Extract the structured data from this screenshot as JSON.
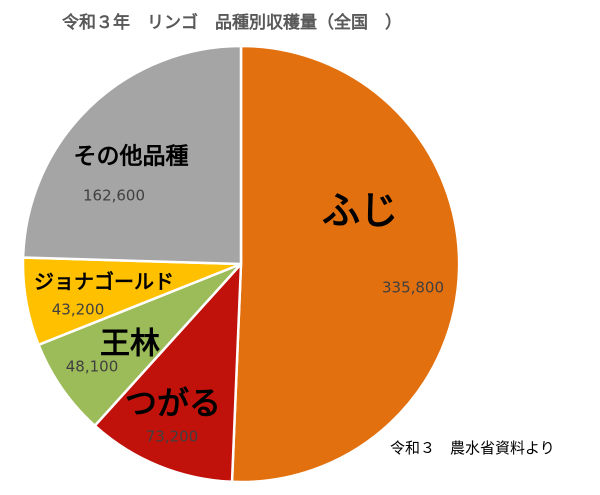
{
  "chart_data": {
    "type": "pie",
    "title": "令和３年　リンゴ　品種別収穫量（全国　）",
    "start_angle_deg": 0,
    "direction": "clockwise",
    "slices": [
      {
        "name": "ふじ",
        "value": 335800,
        "value_label": "335,800",
        "color": "#e2700f"
      },
      {
        "name": "つがる",
        "value": 73200,
        "value_label": "73,200",
        "color": "#c0120b"
      },
      {
        "name": "王林",
        "value": 48100,
        "value_label": "48,100",
        "color": "#9cbb59"
      },
      {
        "name": "ジョナゴールド",
        "value": 43200,
        "value_label": "43,200",
        "color": "#ffc000"
      },
      {
        "name": "その他品種",
        "value": 162600,
        "value_label": "162,600",
        "color": "#a5a5a5"
      }
    ]
  },
  "source_note": "令和３　農水省資料より"
}
